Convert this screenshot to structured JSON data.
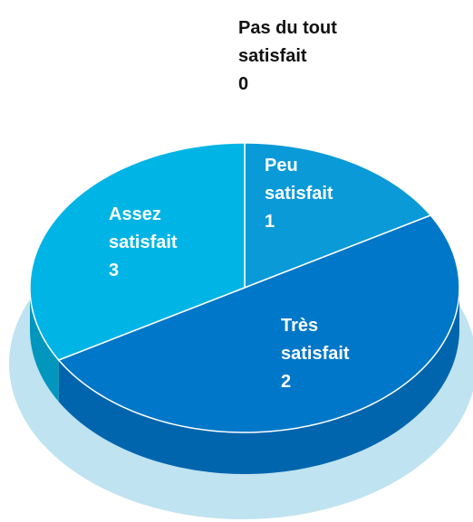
{
  "chart_data": {
    "type": "pie",
    "categories": [
      "Pas du tout satisfait",
      "Peu satisfait",
      "Assez satisfait",
      "Très satisfait"
    ],
    "values": [
      0,
      1,
      3,
      2
    ],
    "colors": [
      "#005a9c",
      "#0a9ad8",
      "#0077c8",
      "#00b5e5"
    ],
    "side_colors": [
      "#004a80",
      "#0a80b8",
      "#0065ad",
      "#0096bd"
    ]
  }
}
